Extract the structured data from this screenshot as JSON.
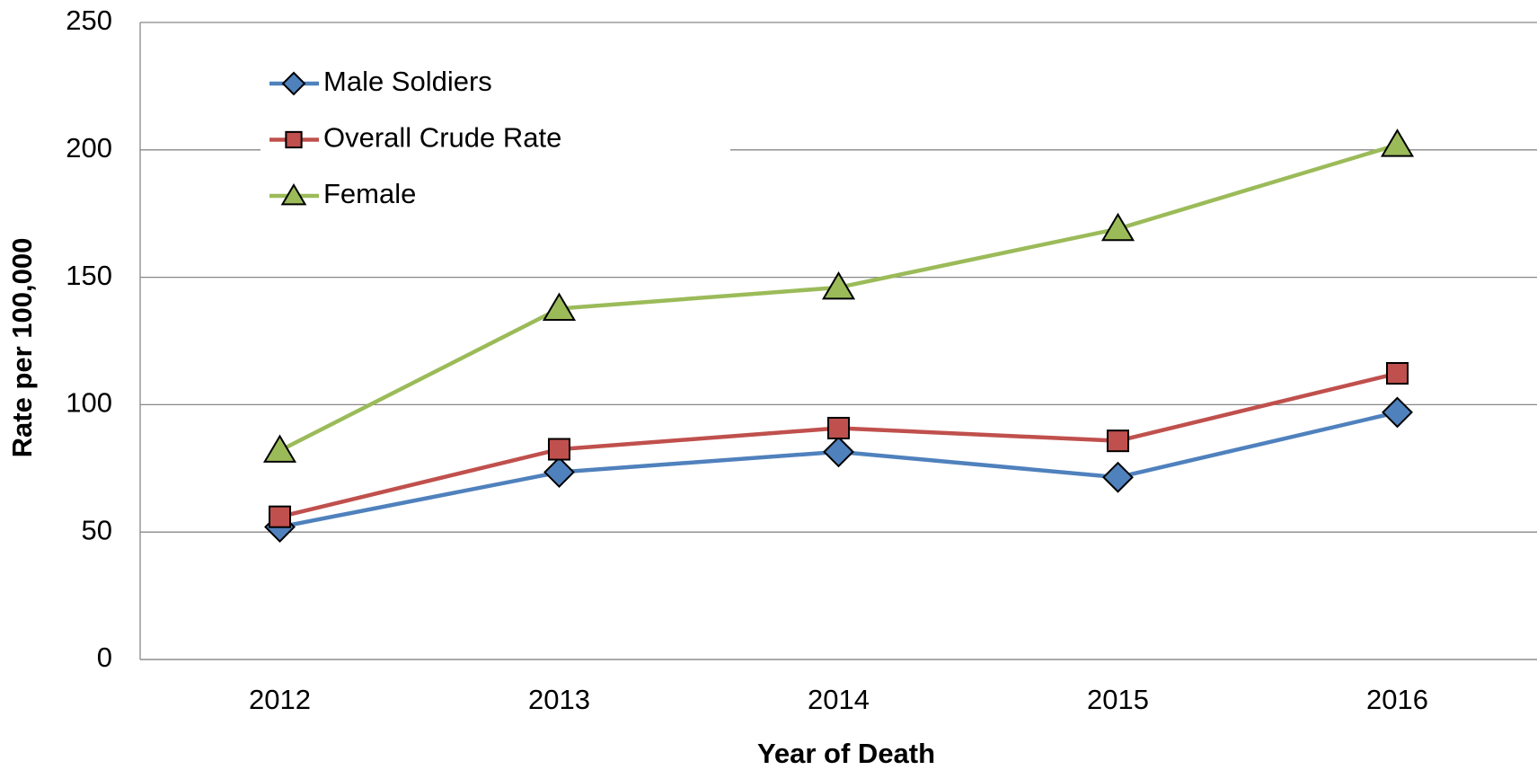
{
  "chart_data": {
    "type": "line",
    "x_label": "Year of Death",
    "y_label": "Rate per 100,000",
    "categories": [
      "2012",
      "2013",
      "2014",
      "2015",
      "2016"
    ],
    "series": [
      {
        "name": "Male Soldiers",
        "color": "#4f81bd",
        "marker": "diamond",
        "values": [
          52,
          73.5,
          81.5,
          71.5,
          97
        ]
      },
      {
        "name": "Overall Crude Rate",
        "color": "#c0504d",
        "marker": "square",
        "values": [
          56,
          82.5,
          90.8,
          85.8,
          112.3
        ]
      },
      {
        "name": "Female",
        "color": "#9bbb59",
        "marker": "triangle",
        "values": [
          82,
          137.7,
          146,
          169,
          202
        ]
      }
    ],
    "ylim": [
      0,
      250
    ],
    "yticks": [
      0,
      50,
      100,
      150,
      200,
      250
    ],
    "grid": true,
    "legend": "upper left"
  }
}
